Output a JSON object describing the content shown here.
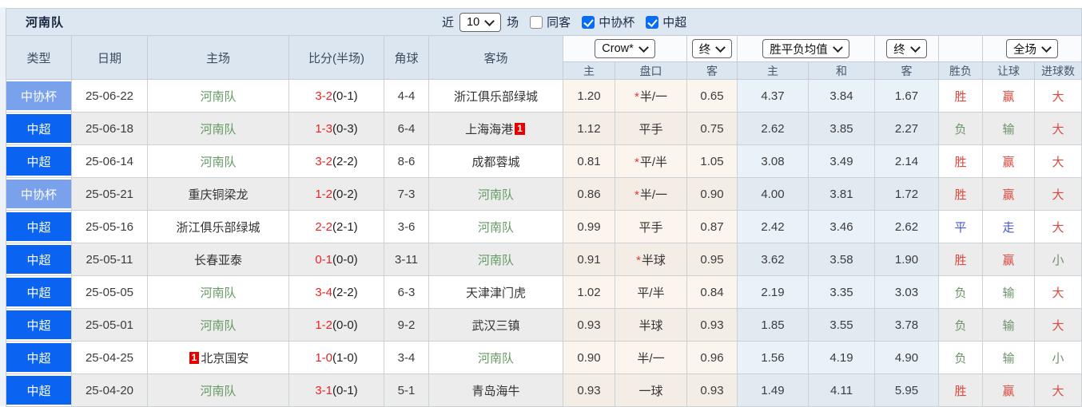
{
  "team_title": "河南队",
  "controls": {
    "recent_label": "近",
    "recent_value": "10",
    "games_label": "场",
    "same_away_label": "同客",
    "same_away_checked": false,
    "cup_label": "中协杯",
    "cup_checked": true,
    "league_label": "中超",
    "league_checked": true
  },
  "selects": {
    "bookmaker": "Crow*",
    "bookmaker_state": "终",
    "average": "胜平负均值",
    "average_state": "终",
    "scope": "全场"
  },
  "icons": {
    "chevron_down": "⌄",
    "checkmark": "✓"
  },
  "colors": {
    "league_blue": "#0b64f1",
    "cup_blue": "#79a1ec",
    "team_green": "#649a62",
    "score_red": "#e62626",
    "result_red": "#dc4940",
    "result_green": "#6e926b",
    "result_blue": "#4a55cc",
    "badge_red": "#e60000",
    "header_bg": "#dbe6f1",
    "titlebar_bg": "#dce7f2"
  },
  "table": {
    "columns": [
      "类型",
      "日期",
      "主场",
      "比分(半场)",
      "角球",
      "客场"
    ],
    "subheaders": [
      "主",
      "盘口",
      "客",
      "主",
      "和",
      "客",
      "胜负",
      "让球",
      "进球数"
    ],
    "rows": [
      {
        "type": "中协杯",
        "type_style": "cup",
        "date": "25-06-22",
        "home": {
          "name": "河南队",
          "self": true
        },
        "score": "3-2",
        "half": "(0-1)",
        "corner": "4-4",
        "away": {
          "name": "浙江俱乐部绿城",
          "self": false
        },
        "crown": {
          "home": "1.20",
          "handicap": "半/一",
          "star": true,
          "away": "0.65"
        },
        "avg": {
          "win": "4.37",
          "draw": "3.84",
          "lose": "1.67"
        },
        "res": [
          {
            "t": "胜",
            "c": "r"
          },
          {
            "t": "赢",
            "c": "r"
          },
          {
            "t": "大",
            "c": "r"
          }
        ]
      },
      {
        "type": "中超",
        "type_style": "league",
        "date": "25-06-18",
        "home": {
          "name": "河南队",
          "self": true
        },
        "score": "1-3",
        "half": "(0-3)",
        "corner": "6-4",
        "away": {
          "name": "上海海港",
          "self": false,
          "badge": "1",
          "badge_pos": "after"
        },
        "crown": {
          "home": "1.12",
          "handicap": "平手",
          "star": false,
          "away": "0.75"
        },
        "avg": {
          "win": "2.62",
          "draw": "3.85",
          "lose": "2.27"
        },
        "res": [
          {
            "t": "负",
            "c": "g"
          },
          {
            "t": "输",
            "c": "g"
          },
          {
            "t": "大",
            "c": "r"
          }
        ]
      },
      {
        "type": "中超",
        "type_style": "league",
        "date": "25-06-14",
        "home": {
          "name": "河南队",
          "self": true
        },
        "score": "3-2",
        "half": "(2-2)",
        "corner": "8-6",
        "away": {
          "name": "成都蓉城",
          "self": false
        },
        "crown": {
          "home": "0.81",
          "handicap": "平/半",
          "star": true,
          "away": "1.05"
        },
        "avg": {
          "win": "3.08",
          "draw": "3.49",
          "lose": "2.14"
        },
        "res": [
          {
            "t": "胜",
            "c": "r"
          },
          {
            "t": "赢",
            "c": "r"
          },
          {
            "t": "大",
            "c": "r"
          }
        ]
      },
      {
        "type": "中协杯",
        "type_style": "cup",
        "date": "25-05-21",
        "home": {
          "name": "重庆铜梁龙",
          "self": false
        },
        "score": "1-2",
        "half": "(0-2)",
        "corner": "7-3",
        "away": {
          "name": "河南队",
          "self": true
        },
        "crown": {
          "home": "0.86",
          "handicap": "半/一",
          "star": true,
          "away": "0.90"
        },
        "avg": {
          "win": "4.00",
          "draw": "3.81",
          "lose": "1.72"
        },
        "res": [
          {
            "t": "胜",
            "c": "r"
          },
          {
            "t": "赢",
            "c": "r"
          },
          {
            "t": "大",
            "c": "r"
          }
        ]
      },
      {
        "type": "中超",
        "type_style": "league",
        "date": "25-05-16",
        "home": {
          "name": "浙江俱乐部绿城",
          "self": false
        },
        "score": "2-2",
        "half": "(2-1)",
        "corner": "3-6",
        "away": {
          "name": "河南队",
          "self": true
        },
        "crown": {
          "home": "0.99",
          "handicap": "平手",
          "star": false,
          "away": "0.87"
        },
        "avg": {
          "win": "2.42",
          "draw": "3.46",
          "lose": "2.62"
        },
        "res": [
          {
            "t": "平",
            "c": "b"
          },
          {
            "t": "走",
            "c": "b"
          },
          {
            "t": "大",
            "c": "r"
          }
        ]
      },
      {
        "type": "中超",
        "type_style": "league",
        "date": "25-05-11",
        "home": {
          "name": "长春亚泰",
          "self": false
        },
        "score": "0-1",
        "half": "(0-0)",
        "corner": "3-11",
        "away": {
          "name": "河南队",
          "self": true
        },
        "crown": {
          "home": "0.91",
          "handicap": "半球",
          "star": true,
          "away": "0.95"
        },
        "avg": {
          "win": "3.62",
          "draw": "3.58",
          "lose": "1.90"
        },
        "res": [
          {
            "t": "胜",
            "c": "r"
          },
          {
            "t": "赢",
            "c": "r"
          },
          {
            "t": "小",
            "c": "g"
          }
        ]
      },
      {
        "type": "中超",
        "type_style": "league",
        "date": "25-05-05",
        "home": {
          "name": "河南队",
          "self": true
        },
        "score": "3-4",
        "half": "(2-2)",
        "corner": "6-3",
        "away": {
          "name": "天津津门虎",
          "self": false
        },
        "crown": {
          "home": "1.02",
          "handicap": "平/半",
          "star": false,
          "away": "0.84"
        },
        "avg": {
          "win": "2.19",
          "draw": "3.35",
          "lose": "3.03"
        },
        "res": [
          {
            "t": "负",
            "c": "g"
          },
          {
            "t": "输",
            "c": "g"
          },
          {
            "t": "大",
            "c": "r"
          }
        ]
      },
      {
        "type": "中超",
        "type_style": "league",
        "date": "25-05-01",
        "home": {
          "name": "河南队",
          "self": true
        },
        "score": "1-2",
        "half": "(0-0)",
        "corner": "9-2",
        "away": {
          "name": "武汉三镇",
          "self": false
        },
        "crown": {
          "home": "0.93",
          "handicap": "半球",
          "star": false,
          "away": "0.93"
        },
        "avg": {
          "win": "1.85",
          "draw": "3.55",
          "lose": "3.78"
        },
        "res": [
          {
            "t": "负",
            "c": "g"
          },
          {
            "t": "输",
            "c": "g"
          },
          {
            "t": "大",
            "c": "r"
          }
        ]
      },
      {
        "type": "中超",
        "type_style": "league",
        "date": "25-04-25",
        "home": {
          "name": "北京国安",
          "self": false,
          "badge": "1",
          "badge_pos": "before"
        },
        "score": "1-0",
        "half": "(1-0)",
        "corner": "3-4",
        "away": {
          "name": "河南队",
          "self": true
        },
        "crown": {
          "home": "0.90",
          "handicap": "半/一",
          "star": false,
          "away": "0.96"
        },
        "avg": {
          "win": "1.56",
          "draw": "4.19",
          "lose": "4.90"
        },
        "res": [
          {
            "t": "负",
            "c": "g"
          },
          {
            "t": "输",
            "c": "g"
          },
          {
            "t": "小",
            "c": "g"
          }
        ]
      },
      {
        "type": "中超",
        "type_style": "league",
        "date": "25-04-20",
        "home": {
          "name": "河南队",
          "self": true
        },
        "score": "3-1",
        "half": "(0-1)",
        "corner": "5-1",
        "away": {
          "name": "青岛海牛",
          "self": false
        },
        "crown": {
          "home": "0.93",
          "handicap": "一球",
          "star": false,
          "away": "0.93"
        },
        "avg": {
          "win": "1.49",
          "draw": "4.11",
          "lose": "5.95"
        },
        "res": [
          {
            "t": "胜",
            "c": "r"
          },
          {
            "t": "赢",
            "c": "r"
          },
          {
            "t": "大",
            "c": "r"
          }
        ]
      }
    ]
  }
}
